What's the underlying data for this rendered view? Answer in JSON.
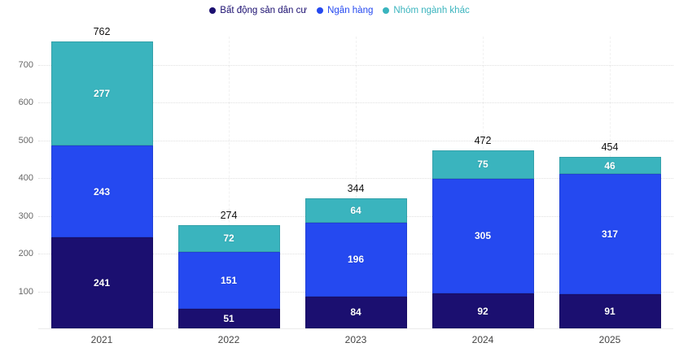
{
  "chart_data": {
    "type": "bar",
    "stacked": true,
    "title": "",
    "xlabel": "",
    "ylabel": "",
    "categories": [
      "2021",
      "2022",
      "2023",
      "2024",
      "2025"
    ],
    "series": [
      {
        "name": "Bất động sản dân cư",
        "color": "#1b0f70",
        "values": [
          241,
          51,
          84,
          92,
          91
        ]
      },
      {
        "name": "Ngân hàng",
        "color": "#2549f0",
        "values": [
          243,
          151,
          196,
          305,
          317
        ]
      },
      {
        "name": "Nhóm ngành khác",
        "color": "#3ab4be",
        "values": [
          277,
          72,
          64,
          75,
          46
        ]
      }
    ],
    "totals": [
      762,
      274,
      344,
      472,
      454
    ],
    "ylim": [
      0,
      775
    ],
    "yticks": [
      100,
      200,
      300,
      400,
      500,
      600,
      700
    ],
    "grid": true,
    "legend_position": "top",
    "legend_marker": "circle-icon",
    "colors": {
      "background": "#ffffff",
      "value_label": "#ffffff",
      "total_label": "#111111",
      "y_tick_label": "#666666",
      "x_tick_label": "#444444",
      "h_gridline": "#e0e0e0",
      "v_gridline": "#f1f1f1"
    }
  }
}
